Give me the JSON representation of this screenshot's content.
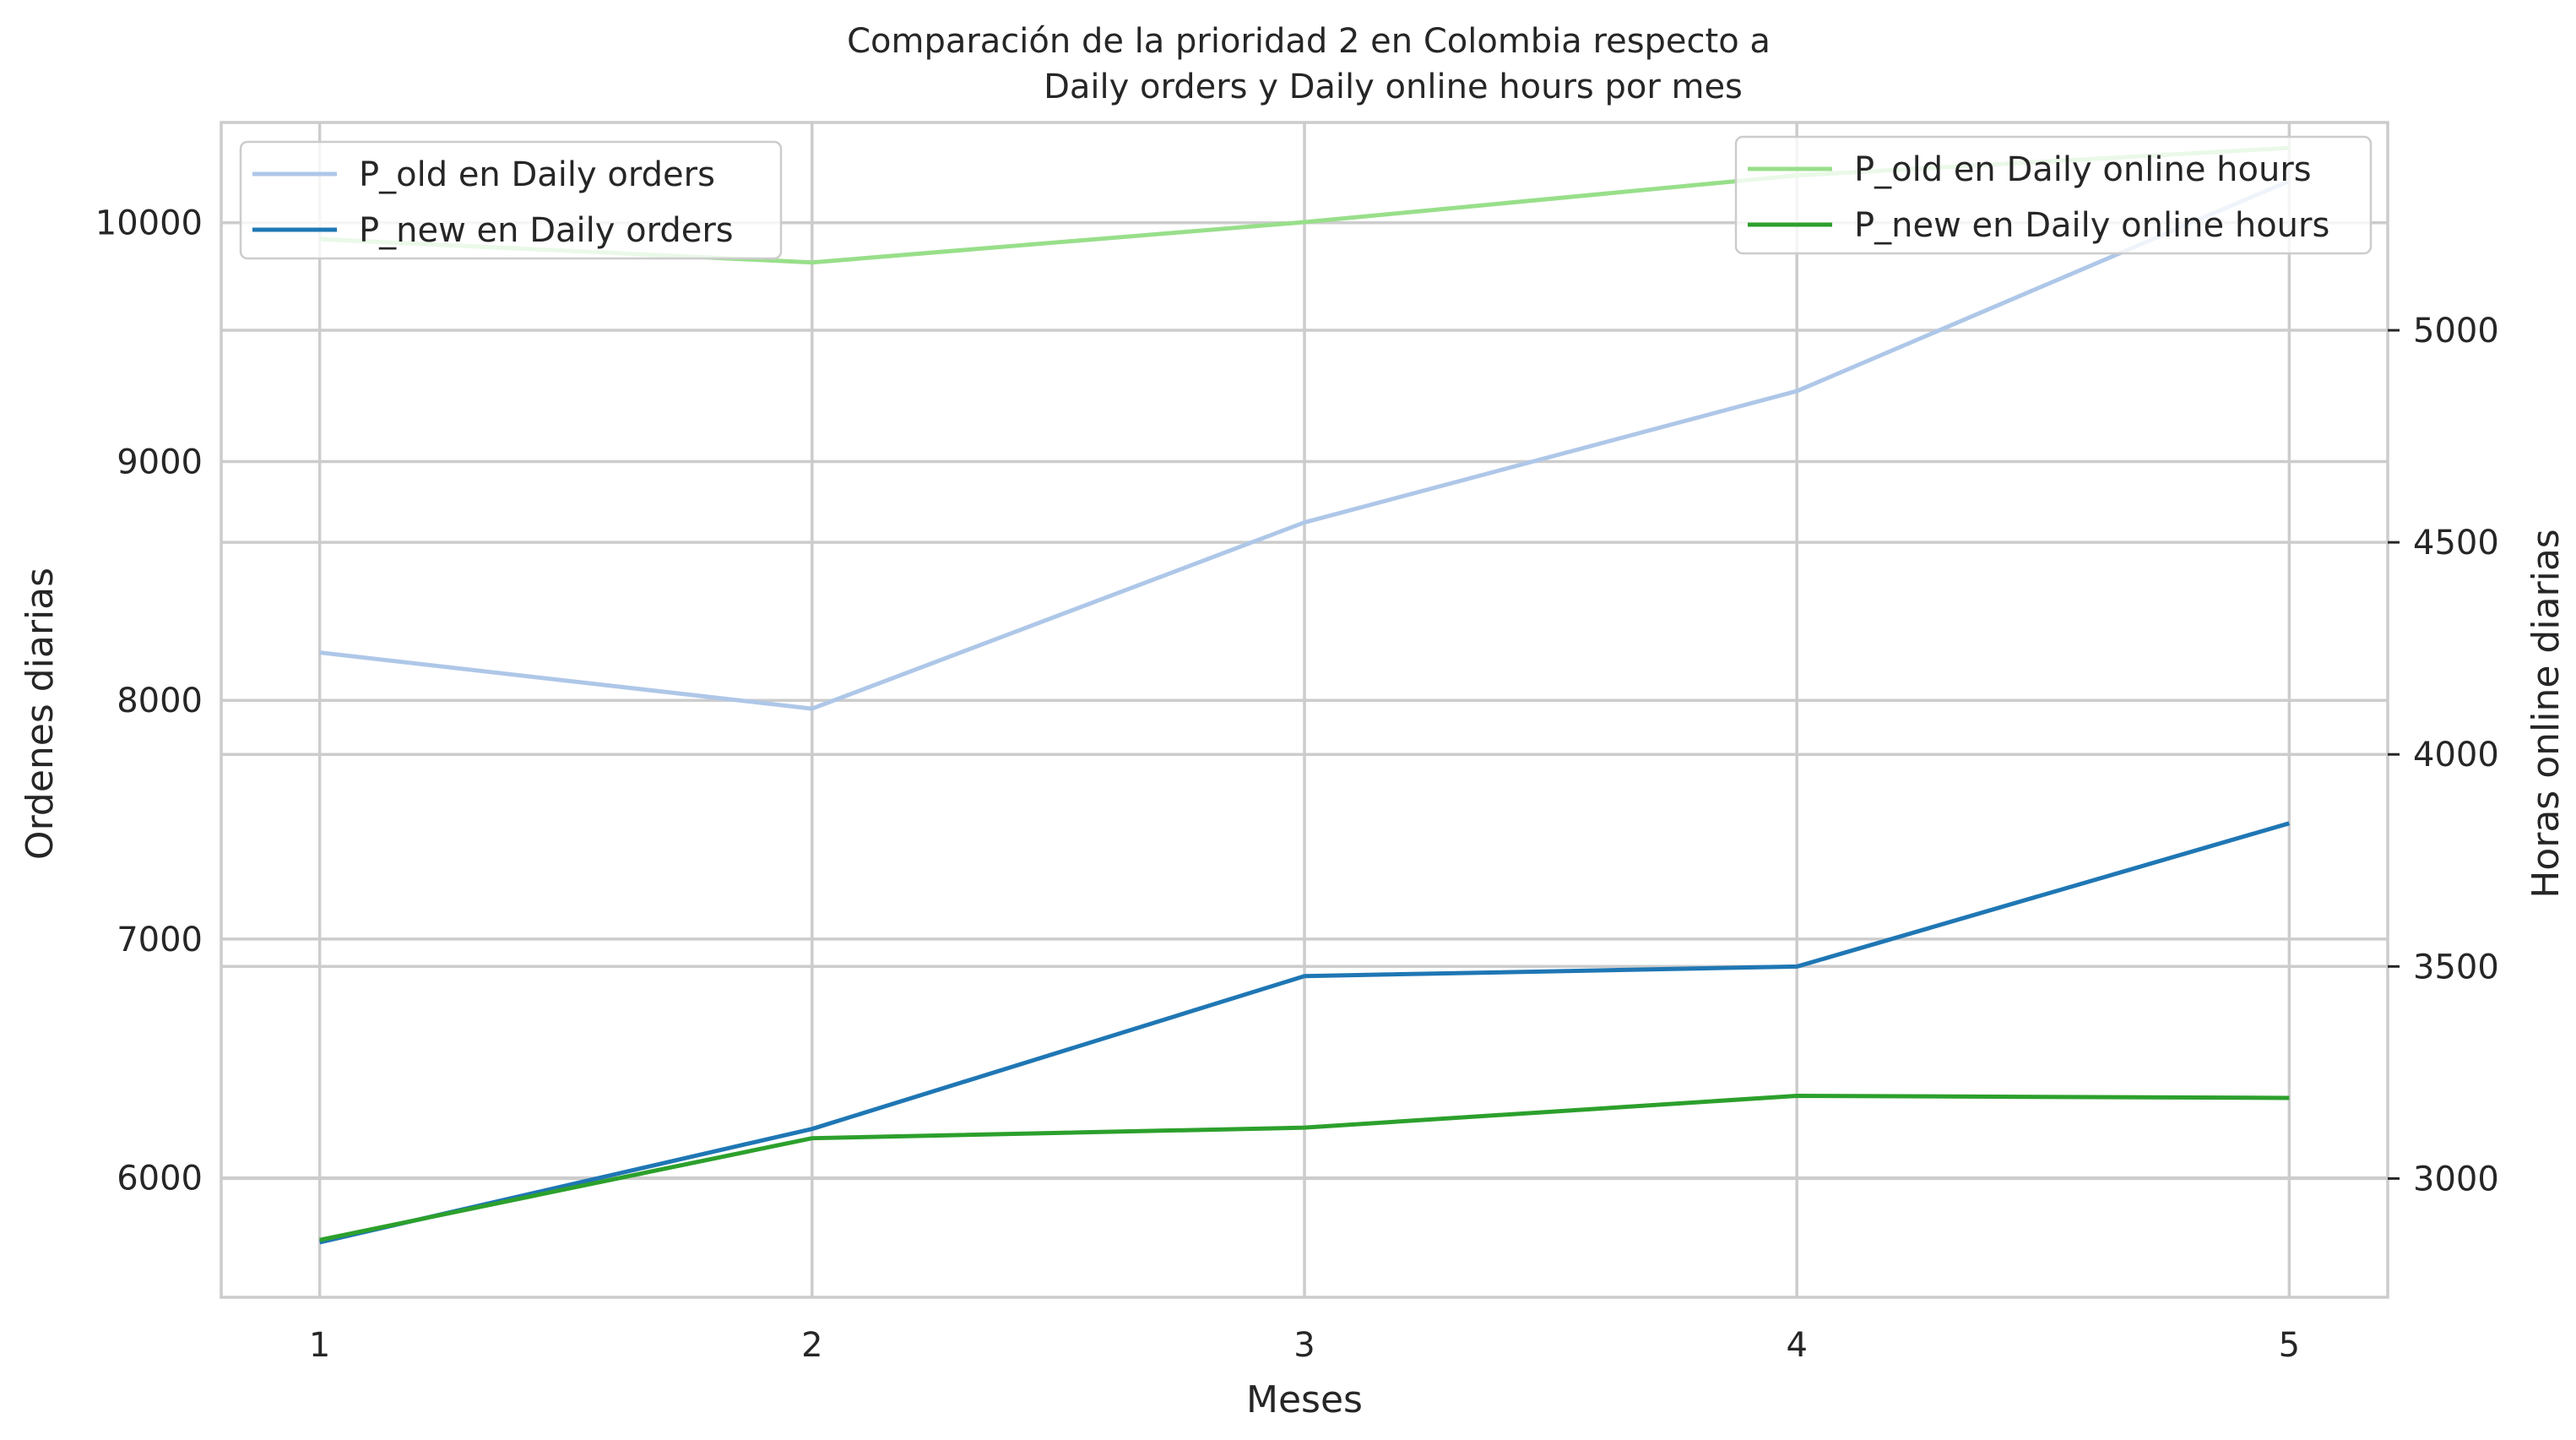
{
  "chart_data": {
    "type": "line",
    "title_line1": "Comparación de la prioridad 2 en Colombia respecto a",
    "title_line2": "Daily orders y Daily online hours por mes",
    "xlabel": "Meses",
    "ylabel_left": "Ordenes diarias",
    "ylabel_right": "Horas online diarias",
    "x": [
      1,
      2,
      3,
      4,
      5
    ],
    "xlim": [
      0.8,
      5.2
    ],
    "ylim_left": [
      5500,
      10420
    ],
    "ylim_right": [
      2720,
      5490
    ],
    "left_ticks": [
      6000,
      7000,
      8000,
      9000,
      10000
    ],
    "right_ticks": [
      3000,
      3500,
      4000,
      4500,
      5000
    ],
    "grid": true,
    "series_left": [
      {
        "name": "P_old en Daily orders",
        "color": "#aec7e8",
        "values": [
          8200,
          7965,
          8745,
          9295,
          10175
        ]
      },
      {
        "name": "P_new en Daily orders",
        "color": "#1f77b4",
        "values": [
          5730,
          6205,
          6845,
          6885,
          7485
        ]
      }
    ],
    "series_right": [
      {
        "name": "P_old en Daily online hours",
        "color": "#98df8a",
        "values": [
          5215,
          5160,
          5255,
          5365,
          5430
        ]
      },
      {
        "name": "P_new en Daily online hours",
        "color": "#2ca02c",
        "values": [
          2855,
          3095,
          3120,
          3195,
          3190
        ]
      }
    ],
    "legend_left_placement": "upper-left",
    "legend_right_placement": "upper-right"
  }
}
